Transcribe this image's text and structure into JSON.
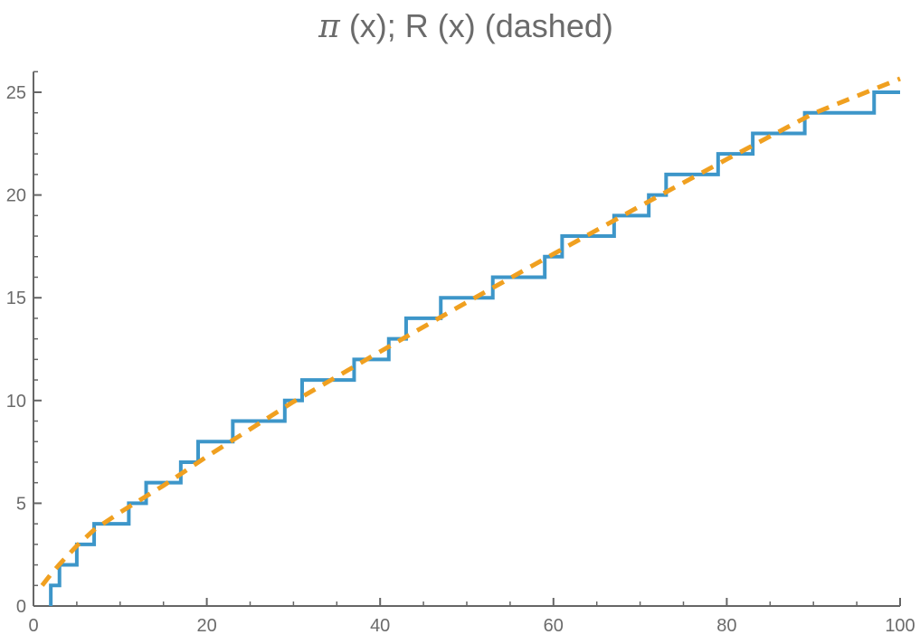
{
  "title": {
    "pi_symbol": "π",
    "rest": " (x); R (x) (dashed)"
  },
  "chart_data": {
    "type": "line",
    "title": "π (x); R (x) (dashed)",
    "xlabel": "",
    "ylabel": "",
    "xlim": [
      0,
      100
    ],
    "ylim": [
      0,
      26
    ],
    "x_ticks": [
      0,
      20,
      40,
      60,
      80,
      100
    ],
    "y_ticks": [
      0,
      5,
      10,
      15,
      20,
      25
    ],
    "grid": false,
    "series": [
      {
        "name": "π(x)",
        "style": "solid step",
        "color": "#3d96c9",
        "x_start": 2,
        "x_end": 100,
        "primes": [
          2,
          3,
          5,
          7,
          11,
          13,
          17,
          19,
          23,
          29,
          31,
          37,
          41,
          43,
          47,
          53,
          59,
          61,
          67,
          71,
          73,
          79,
          83,
          89,
          97
        ],
        "final_value": 25
      },
      {
        "name": "R(x)",
        "style": "dashed",
        "color": "#f0a020",
        "x": [
          1,
          2,
          3,
          5,
          7,
          10,
          15,
          20,
          30,
          40,
          50,
          60,
          70,
          80,
          90,
          100
        ],
        "values": [
          1.0,
          1.54,
          2.03,
          2.93,
          3.71,
          4.56,
          5.86,
          7.27,
          9.94,
          12.38,
          14.78,
          17.13,
          19.46,
          21.74,
          23.97,
          25.66
        ]
      }
    ]
  },
  "colors": {
    "axis": "#666666",
    "text": "#6b6b6b",
    "pi_line": "#3d96c9",
    "r_line": "#f0a020"
  }
}
